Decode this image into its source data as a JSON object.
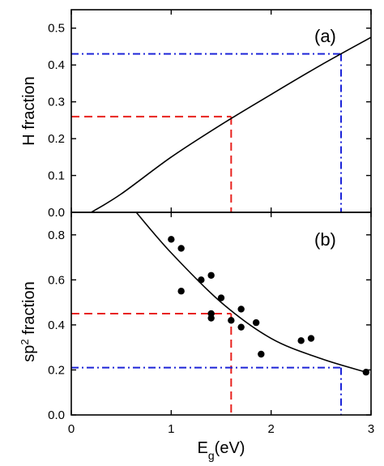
{
  "chart_data": [
    {
      "type": "line",
      "panel_label": "(a)",
      "ylabel": "H fraction",
      "xlim": [
        0,
        3
      ],
      "ylim": [
        0,
        0.55
      ],
      "x_ticks": [
        "0",
        "1",
        "2",
        "3"
      ],
      "y_ticks": [
        "0.0",
        "0.1",
        "0.2",
        "0.3",
        "0.4",
        "0.5"
      ],
      "series": [
        {
          "color": "#000000",
          "style": "solid",
          "x": [
            0.2,
            0.5,
            1.0,
            1.5,
            2.0,
            2.5,
            3.0
          ],
          "y": [
            0.0,
            0.05,
            0.15,
            0.238,
            0.32,
            0.4,
            0.475
          ]
        }
      ],
      "guide_lines": [
        {
          "color": "#e8211d",
          "style": "dashed",
          "x": 1.6,
          "y": 0.26
        },
        {
          "color": "#1c24d8",
          "style": "dashdot",
          "x": 2.7,
          "y": 0.43
        }
      ],
      "grid": false
    },
    {
      "type": "scatter",
      "panel_label": "(b)",
      "ylabel_prefix": "sp",
      "ylabel_superscript": "2",
      "ylabel_suffix": " fraction",
      "xlabel_main": "E",
      "xlabel_subscript": "g",
      "xlabel_unit": "(eV)",
      "xlim": [
        0,
        3
      ],
      "ylim": [
        0,
        0.9
      ],
      "x_ticks": [
        "0",
        "1",
        "2",
        "3"
      ],
      "y_ticks": [
        "0.0",
        "0.2",
        "0.4",
        "0.6",
        "0.8"
      ],
      "points": {
        "color": "#000000",
        "x": [
          1.0,
          1.1,
          1.1,
          1.3,
          1.4,
          1.4,
          1.4,
          1.5,
          1.6,
          1.7,
          1.7,
          1.85,
          1.9,
          2.3,
          2.4,
          2.95
        ],
        "y": [
          0.78,
          0.74,
          0.55,
          0.6,
          0.62,
          0.43,
          0.45,
          0.52,
          0.42,
          0.47,
          0.39,
          0.41,
          0.27,
          0.33,
          0.34,
          0.19
        ]
      },
      "fit": {
        "color": "#000000",
        "style": "solid",
        "x": [
          0.65,
          1.0,
          1.5,
          2.0,
          2.5,
          2.95
        ],
        "y": [
          0.9,
          0.72,
          0.5,
          0.34,
          0.25,
          0.19
        ]
      },
      "guide_lines": [
        {
          "color": "#e8211d",
          "style": "dashed",
          "x": 1.6,
          "y": 0.45
        },
        {
          "color": "#1c24d8",
          "style": "dashdot",
          "x": 2.7,
          "y": 0.21
        }
      ],
      "grid": false
    }
  ]
}
